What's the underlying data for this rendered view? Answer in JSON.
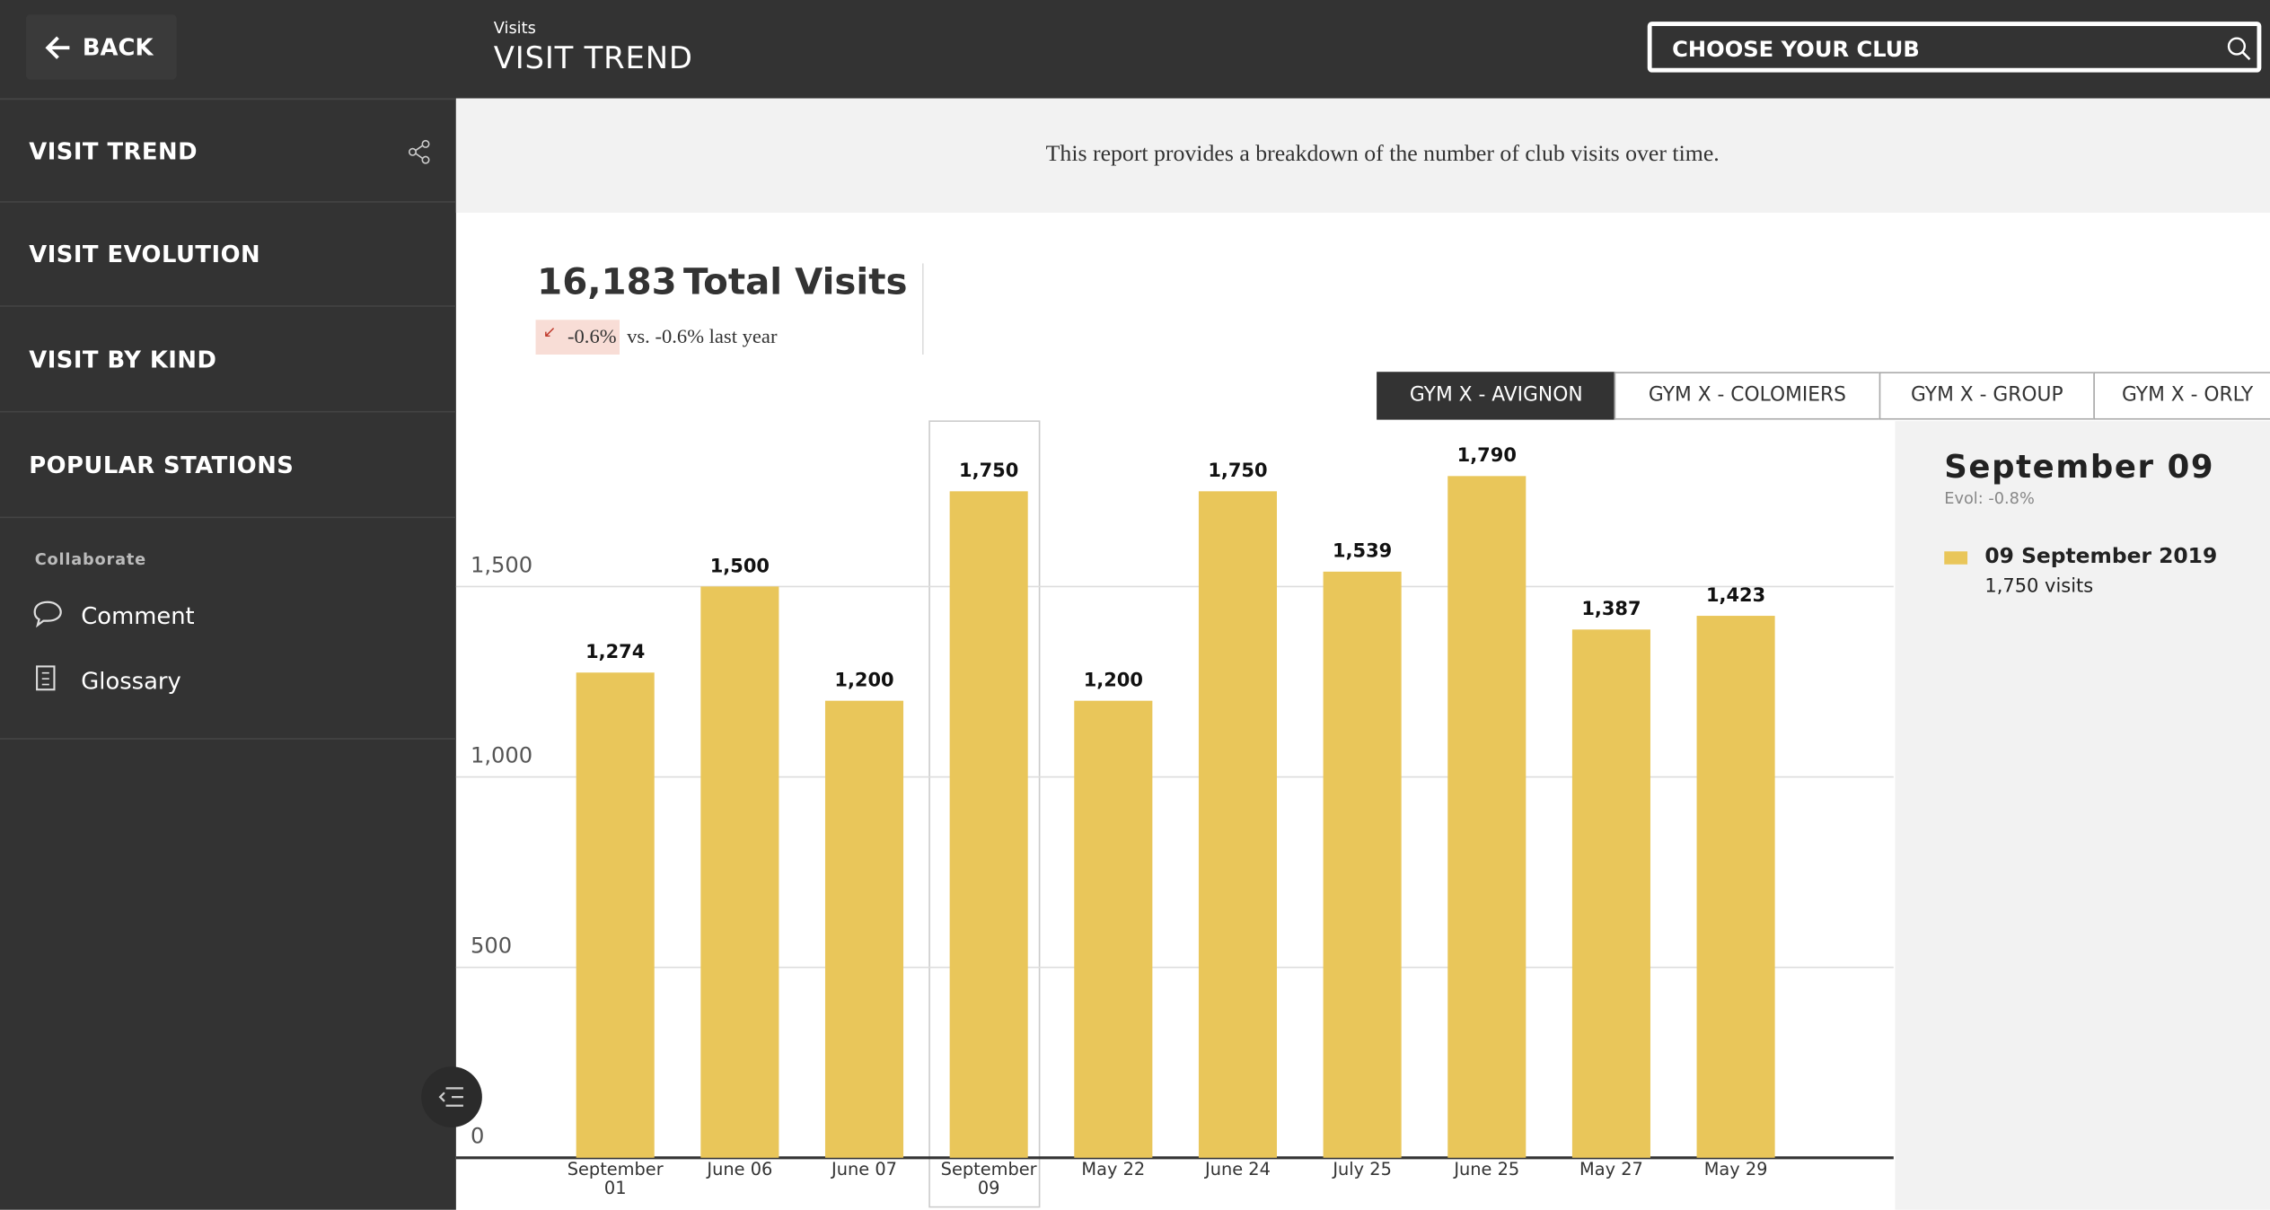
{
  "header": {
    "back": "BACK",
    "subtitle": "Visits",
    "title": "VISIT TREND",
    "search": "CHOOSE YOUR CLUB"
  },
  "sidebar": {
    "items": [
      "VISIT TREND",
      "VISIT EVOLUTION",
      "VISIT BY KIND",
      "POPULAR STATIONS"
    ],
    "section": "Collaborate",
    "links": [
      "Comment",
      "Glossary"
    ]
  },
  "report": {
    "description": "This report provides a breakdown of the number of club visits over time.",
    "total": "16,183",
    "total_label": "Total Visits",
    "delta": "-0.6%",
    "delta_text": "vs. -0.6% last year",
    "tabs": [
      "GYM X - AVIGNON",
      "GYM X - COLOMIERS",
      "GYM X - GROUP",
      "GYM X - ORLY"
    ]
  },
  "detail": {
    "title": "September 09",
    "evol": "Evol: -0.8%",
    "legend": "09 September 2019",
    "visits": "1,750 visits"
  },
  "chart_data": {
    "type": "bar",
    "categories": [
      "September 01",
      "June 06",
      "June 07",
      "September 09",
      "May 22",
      "June 24",
      "July 25",
      "June 25",
      "May 27",
      "May 29"
    ],
    "values": [
      1274,
      1500,
      1200,
      1750,
      1200,
      1750,
      1539,
      1790,
      1387,
      1423
    ],
    "value_labels": [
      "1,274",
      "1,500",
      "1,200",
      "1,750",
      "1,200",
      "1,750",
      "1,539",
      "1,790",
      "1,387",
      "1,423"
    ],
    "color": "#e9c65a",
    "ylim": [
      0,
      1900
    ],
    "yticks": [
      0,
      500,
      {
        "value": 1000,
        "label": "1,000"
      },
      {
        "value": 1500,
        "label": "1,500"
      }
    ],
    "grid": true
  }
}
